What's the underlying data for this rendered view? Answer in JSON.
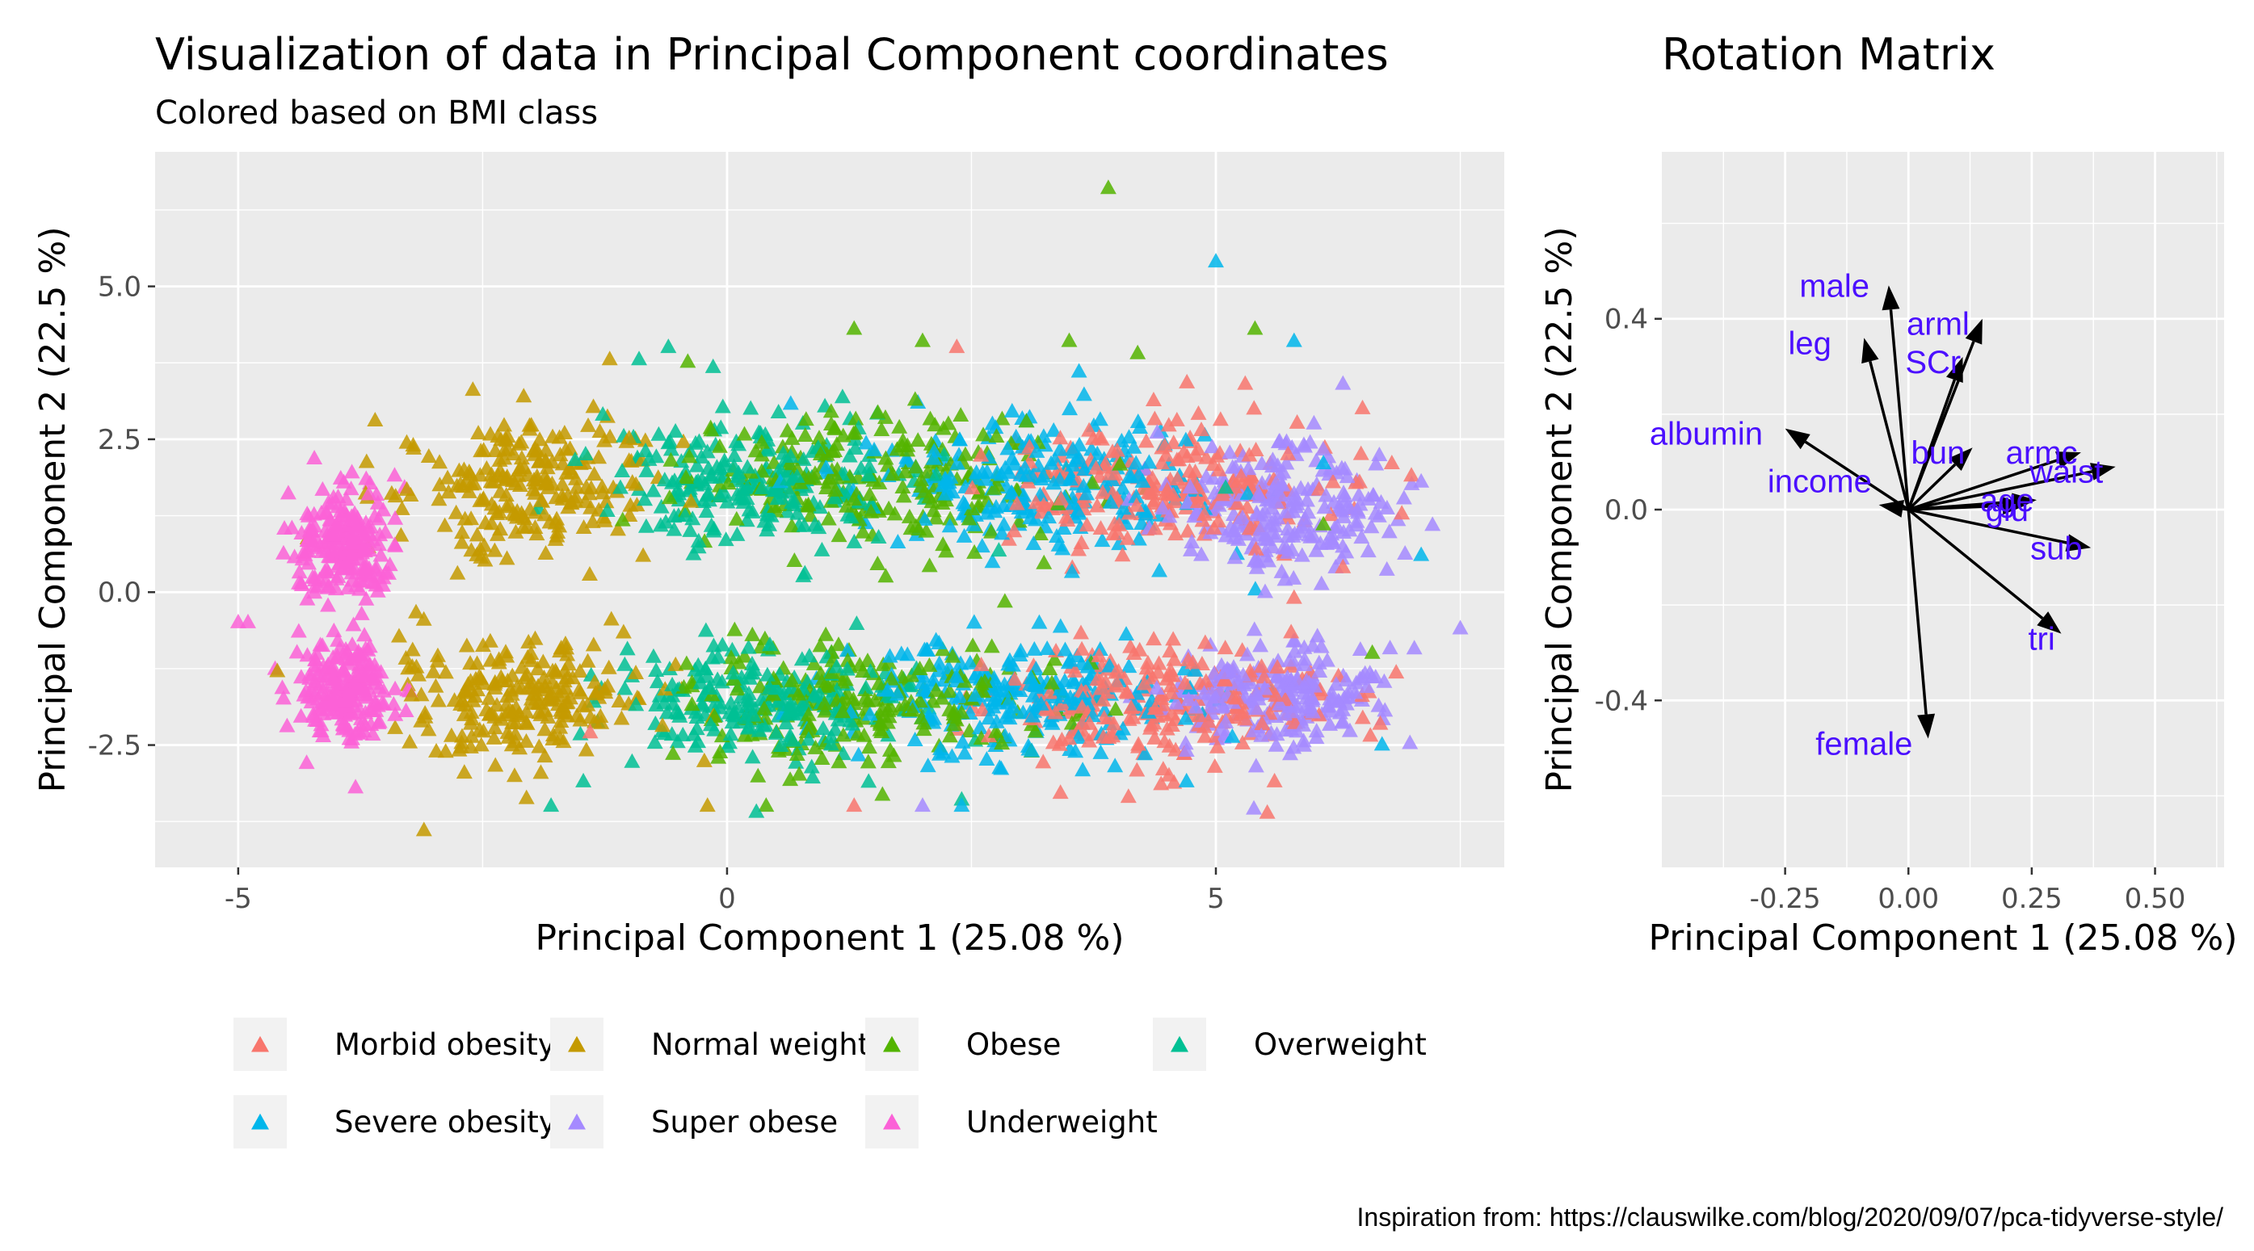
{
  "caption": "Inspiration from: https://clauswilke.com/blog/2020/09/07/pca-tidyverse-style/",
  "colors": {
    "panel_bg": "#ebebeb",
    "grid": "#ffffff",
    "tick_text": "#4d4d4d",
    "loading_label": "#4b0fff"
  },
  "chart_data": [
    {
      "type": "scatter",
      "title": "Visualization of data in Principal Component coordinates",
      "subtitle": "Colored based on BMI class",
      "xlabel": "Principal Component 1 (25.08 %)",
      "ylabel": "Principal Component 2 (22.5 %)",
      "xlim": [
        -5.85,
        7.95
      ],
      "ylim": [
        -4.5,
        7.2
      ],
      "xticks": [
        -5,
        0,
        5
      ],
      "xtick_labels": [
        "-5",
        "0",
        "5"
      ],
      "yticks": [
        -2.5,
        0,
        2.5,
        5
      ],
      "ytick_labels": [
        "-2.5",
        "0.0",
        "2.5",
        "5.0"
      ],
      "grid": true,
      "marker": "triangle",
      "legend_position": "bottom",
      "series": [
        {
          "name": "Morbid obesity",
          "color": "#f8766d",
          "clusters": [
            {
              "center": [
                4.4,
                1.7
              ],
              "spread": [
                1.4,
                1.0
              ]
            },
            {
              "center": [
                4.4,
                -1.8
              ],
              "spread": [
                1.4,
                0.9
              ]
            }
          ],
          "points": [
            [
              2.35,
              4.0
            ],
            [
              5.3,
              3.4
            ],
            [
              6.5,
              3.0
            ],
            [
              6.8,
              2.1
            ],
            [
              7.0,
              1.9
            ],
            [
              5.8,
              -0.1
            ],
            [
              5.6,
              -3.1
            ],
            [
              2.6,
              -1.2
            ],
            [
              -1.4,
              -2.3
            ],
            [
              1.3,
              -3.5
            ],
            [
              6.3,
              0.4
            ]
          ]
        },
        {
          "name": "Normal weight",
          "color": "#c49a00",
          "clusters": [
            {
              "center": [
                -2.1,
                1.7
              ],
              "spread": [
                1.1,
                1.0
              ]
            },
            {
              "center": [
                -2.1,
                -1.7
              ],
              "spread": [
                1.1,
                0.9
              ]
            }
          ],
          "points": [
            [
              -3.1,
              -3.9
            ],
            [
              -2.6,
              3.3
            ],
            [
              -4.6,
              -1.3
            ],
            [
              -3.6,
              2.8
            ],
            [
              -0.2,
              -3.5
            ],
            [
              -1.2,
              3.8
            ]
          ]
        },
        {
          "name": "Obese",
          "color": "#53b400",
          "clusters": [
            {
              "center": [
                1.5,
                1.8
              ],
              "spread": [
                1.6,
                1.0
              ]
            },
            {
              "center": [
                1.5,
                -1.8
              ],
              "spread": [
                1.6,
                0.9
              ]
            }
          ],
          "points": [
            [
              3.9,
              6.6
            ],
            [
              5.4,
              4.3
            ],
            [
              1.3,
              4.3
            ],
            [
              3.5,
              4.1
            ],
            [
              6.6,
              -1.0
            ],
            [
              6.1,
              1.1
            ],
            [
              0.4,
              -3.5
            ],
            [
              4.2,
              3.9
            ],
            [
              2.0,
              4.1
            ]
          ]
        },
        {
          "name": "Overweight",
          "color": "#00c094",
          "clusters": [
            {
              "center": [
                0.3,
                1.8
              ],
              "spread": [
                1.3,
                0.9
              ]
            },
            {
              "center": [
                0.3,
                -1.8
              ],
              "spread": [
                1.3,
                0.85
              ]
            }
          ],
          "points": [
            [
              -0.6,
              4.0
            ],
            [
              -1.8,
              -3.5
            ],
            [
              0.3,
              -3.6
            ],
            [
              2.4,
              -3.4
            ],
            [
              5.1,
              1.7
            ],
            [
              -0.9,
              3.8
            ]
          ]
        },
        {
          "name": "Severe obesity",
          "color": "#00b6eb",
          "clusters": [
            {
              "center": [
                3.1,
                1.7
              ],
              "spread": [
                1.5,
                1.0
              ]
            },
            {
              "center": [
                3.1,
                -1.8
              ],
              "spread": [
                1.5,
                0.9
              ]
            }
          ],
          "points": [
            [
              5.0,
              5.4
            ],
            [
              5.8,
              4.1
            ],
            [
              7.1,
              0.6
            ],
            [
              6.7,
              -2.5
            ],
            [
              6.1,
              2.1
            ],
            [
              2.4,
              -3.5
            ],
            [
              3.6,
              3.6
            ],
            [
              4.7,
              -3.1
            ]
          ]
        },
        {
          "name": "Super obese",
          "color": "#a58aff",
          "clusters": [
            {
              "center": [
                5.7,
                1.4
              ],
              "spread": [
                0.9,
                1.0
              ]
            },
            {
              "center": [
                5.7,
                -1.7
              ],
              "spread": [
                0.9,
                0.7
              ]
            }
          ],
          "points": [
            [
              7.5,
              -0.6
            ],
            [
              7.1,
              1.8
            ],
            [
              6.3,
              3.4
            ],
            [
              5.8,
              1.6
            ],
            [
              4.7,
              -2.6
            ],
            [
              2.0,
              -3.5
            ],
            [
              5.9,
              2.4
            ],
            [
              6.5,
              -1.4
            ],
            [
              4.4,
              2.6
            ],
            [
              6.0,
              0.9
            ]
          ]
        },
        {
          "name": "Underweight",
          "color": "#fb61d7",
          "clusters": [
            {
              "center": [
                -3.9,
                0.8
              ],
              "spread": [
                0.4,
                0.8
              ]
            },
            {
              "center": [
                -3.9,
                -1.6
              ],
              "spread": [
                0.4,
                0.7
              ]
            }
          ],
          "points": [
            [
              -5.0,
              -0.5
            ],
            [
              -4.9,
              -0.5
            ],
            [
              -4.5,
              -2.2
            ],
            [
              -4.3,
              -2.8
            ],
            [
              -3.8,
              -3.2
            ],
            [
              -4.1,
              1.3
            ],
            [
              -3.4,
              1.9
            ]
          ]
        }
      ]
    },
    {
      "type": "arrows",
      "title": "Rotation Matrix",
      "xlabel": "Principal Component 1 (25.08 %)",
      "ylabel": "Principal Component 2 (22.5 %)",
      "xlim": [
        -0.5,
        0.64
      ],
      "ylim": [
        -0.75,
        0.75
      ],
      "xticks": [
        -0.25,
        0.0,
        0.25,
        0.5
      ],
      "xtick_labels": [
        "-0.25",
        "0.00",
        "0.25",
        "0.50"
      ],
      "yticks": [
        -0.4,
        0.0,
        0.4
      ],
      "ytick_labels": [
        "-0.4",
        "0.0",
        "0.4"
      ],
      "grid": true,
      "loadings": [
        {
          "name": "male",
          "x": -0.04,
          "y": 0.47,
          "label_x": -0.15,
          "label_y": 0.47
        },
        {
          "name": "leg",
          "x": -0.09,
          "y": 0.36,
          "label_x": -0.2,
          "label_y": 0.35
        },
        {
          "name": "arml",
          "x": 0.15,
          "y": 0.4,
          "label_x": 0.06,
          "label_y": 0.39
        },
        {
          "name": "SCr",
          "x": 0.11,
          "y": 0.32,
          "label_x": 0.05,
          "label_y": 0.31
        },
        {
          "name": "albumin",
          "x": -0.25,
          "y": 0.17,
          "label_x": -0.41,
          "label_y": 0.16
        },
        {
          "name": "income",
          "x": -0.06,
          "y": 0.01,
          "label_x": -0.18,
          "label_y": 0.06
        },
        {
          "name": "bun",
          "x": 0.13,
          "y": 0.13,
          "label_x": 0.06,
          "label_y": 0.12
        },
        {
          "name": "armc",
          "x": 0.35,
          "y": 0.12,
          "label_x": 0.27,
          "label_y": 0.12
        },
        {
          "name": "waist",
          "x": 0.42,
          "y": 0.09,
          "label_x": 0.32,
          "label_y": 0.08
        },
        {
          "name": "age",
          "x": 0.26,
          "y": 0.02,
          "label_x": 0.2,
          "label_y": 0.02
        },
        {
          "name": "glu",
          "x": 0.24,
          "y": 0.01,
          "label_x": 0.2,
          "label_y": 0.0
        },
        {
          "name": "sub",
          "x": 0.37,
          "y": -0.08,
          "label_x": 0.3,
          "label_y": -0.08
        },
        {
          "name": "tri",
          "x": 0.31,
          "y": -0.26,
          "label_x": 0.27,
          "label_y": -0.27
        },
        {
          "name": "female",
          "x": 0.04,
          "y": -0.48,
          "label_x": -0.09,
          "label_y": -0.49
        }
      ]
    }
  ]
}
